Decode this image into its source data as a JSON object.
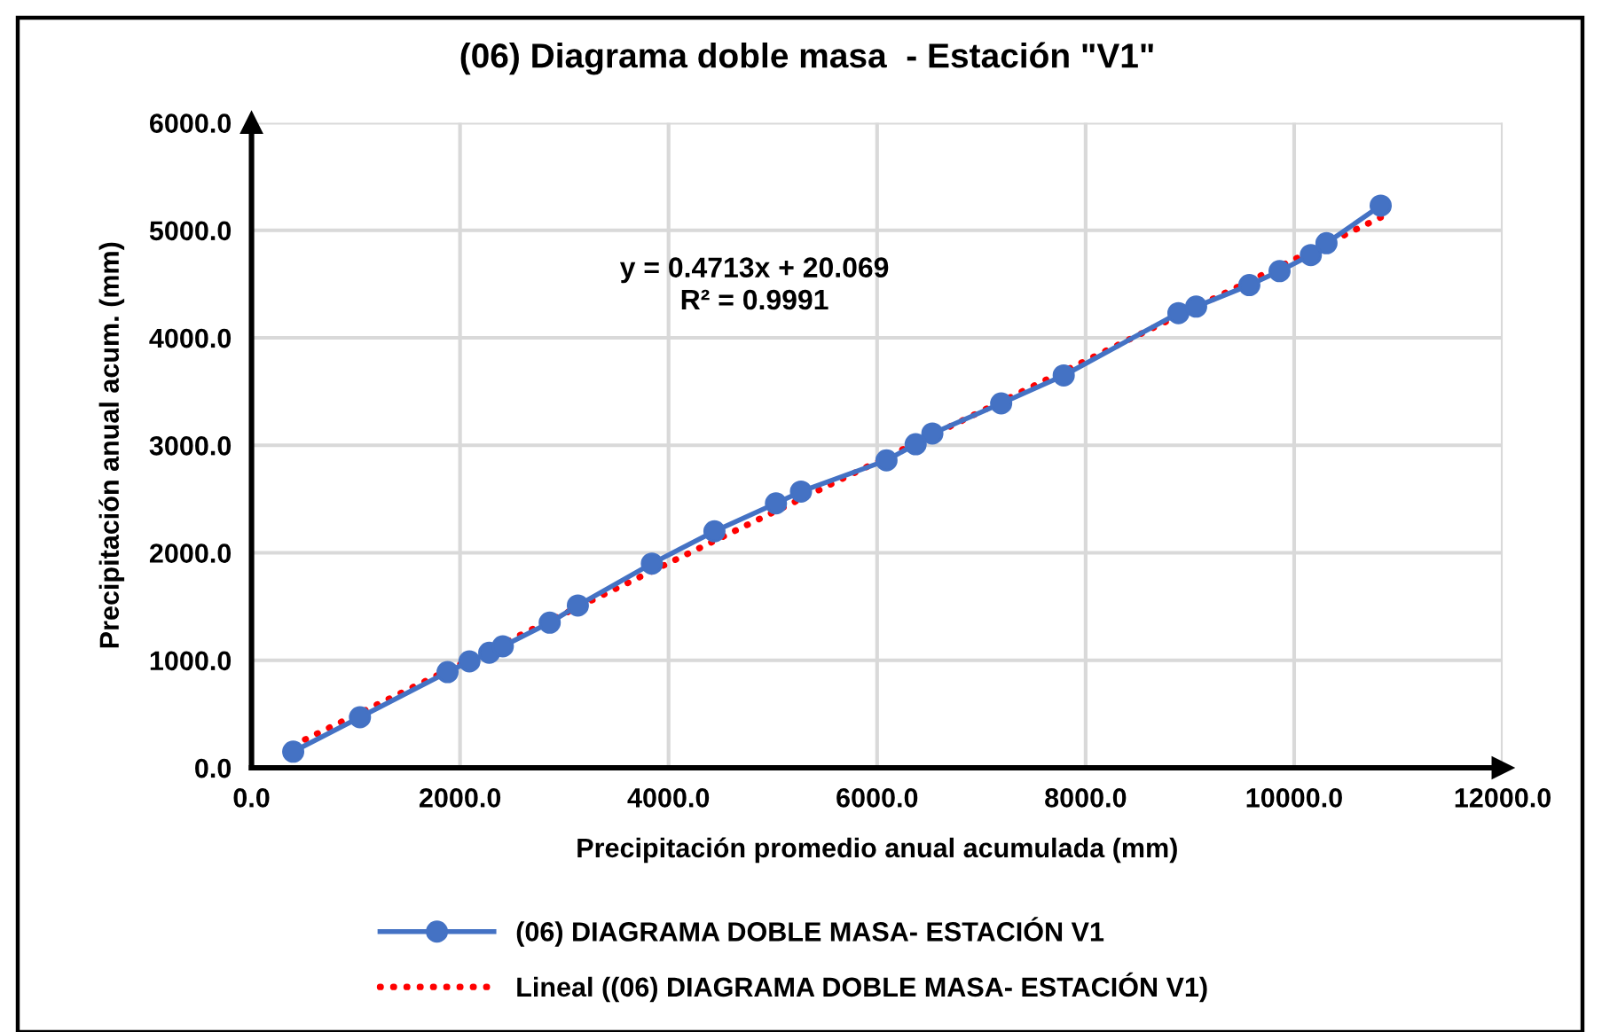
{
  "chart_data": {
    "type": "line",
    "title": "(06) Diagrama doble masa  - Estación \"V1\"",
    "xlabel": "Precipitación promedio anual acumulada (mm)",
    "ylabel": "Precipitación anual acum. (mm)",
    "annotations": [
      "y = 0.4713x + 20.069",
      "R² = 0.9991"
    ],
    "series": [
      {
        "name": "(06) DIAGRAMA DOBLE MASA- ESTACIÓN V1",
        "color": "#4472c4",
        "marker": "circle",
        "line_style": "solid",
        "x": [
          400,
          1040,
          1880,
          2090,
          2280,
          2410,
          2860,
          3130,
          3840,
          4440,
          5030,
          5270,
          6090,
          6370,
          6530,
          7190,
          7790,
          8890,
          9060,
          9570,
          9860,
          10160,
          10310,
          10830
        ],
        "values": [
          150,
          470,
          890,
          990,
          1070,
          1130,
          1350,
          1510,
          1900,
          2200,
          2460,
          2570,
          2860,
          3010,
          3110,
          3390,
          3650,
          4230,
          4290,
          4490,
          4620,
          4770,
          4880,
          5230
        ]
      },
      {
        "name": "Lineal ((06) DIAGRAMA DOBLE MASA- ESTACIÓN V1)",
        "color": "#ff0000",
        "marker": "none",
        "line_style": "dotted",
        "x": [
          400,
          10830
        ],
        "values": [
          210,
          5120
        ]
      }
    ],
    "xlim": [
      0,
      12000
    ],
    "xticks": [
      {
        "value": 0,
        "label": "0.0"
      },
      {
        "value": 2000,
        "label": "2000.0"
      },
      {
        "value": 4000,
        "label": "4000.0"
      },
      {
        "value": 6000,
        "label": "6000.0"
      },
      {
        "value": 8000,
        "label": "8000.0"
      },
      {
        "value": 10000,
        "label": "10000.0"
      },
      {
        "value": 12000,
        "label": "12000.0"
      }
    ],
    "ylim": [
      0,
      6000
    ],
    "yticks": [
      {
        "value": 0,
        "label": "0.0"
      },
      {
        "value": 1000,
        "label": "1000.0"
      },
      {
        "value": 2000,
        "label": "2000.0"
      },
      {
        "value": 3000,
        "label": "3000.0"
      },
      {
        "value": 4000,
        "label": "4000.0"
      },
      {
        "value": 5000,
        "label": "5000.0"
      },
      {
        "value": 6000,
        "label": "6000.0"
      }
    ],
    "grid": true,
    "legend": "bottom"
  }
}
